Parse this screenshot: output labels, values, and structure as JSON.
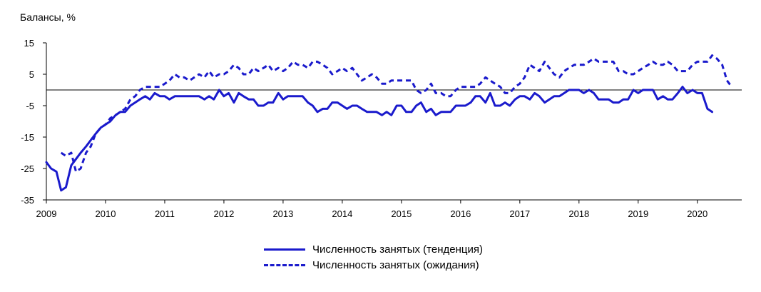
{
  "chart_data": {
    "type": "line",
    "ylabel": "Балансы, %",
    "ylim": [
      -35,
      15
    ],
    "yticks": [
      15,
      5,
      -5,
      -15,
      -25,
      -35
    ],
    "xlim": [
      2009,
      2020.75
    ],
    "xticks": [
      "2009",
      "2010",
      "2011",
      "2012",
      "2013",
      "2014",
      "2015",
      "2016",
      "2017",
      "2018",
      "2019",
      "2020"
    ],
    "zero_line": true,
    "grid": false,
    "legend_position": "bottom",
    "line_color": "#1a1acc",
    "series": [
      {
        "name": "Численность занятых (тенденция)",
        "style": "solid",
        "points": [
          [
            2009.0,
            -23
          ],
          [
            2009.08,
            -25
          ],
          [
            2009.17,
            -26
          ],
          [
            2009.25,
            -32
          ],
          [
            2009.33,
            -31
          ],
          [
            2009.42,
            -24
          ],
          [
            2009.5,
            -22
          ],
          [
            2009.58,
            -20
          ],
          [
            2009.67,
            -18
          ],
          [
            2009.75,
            -16
          ],
          [
            2009.83,
            -14
          ],
          [
            2009.92,
            -12
          ],
          [
            2010.0,
            -11
          ],
          [
            2010.08,
            -10
          ],
          [
            2010.17,
            -8
          ],
          [
            2010.25,
            -7
          ],
          [
            2010.33,
            -7
          ],
          [
            2010.42,
            -5
          ],
          [
            2010.5,
            -4
          ],
          [
            2010.58,
            -3
          ],
          [
            2010.67,
            -2
          ],
          [
            2010.75,
            -3
          ],
          [
            2010.83,
            -1
          ],
          [
            2010.92,
            -2
          ],
          [
            2011.0,
            -2
          ],
          [
            2011.08,
            -3
          ],
          [
            2011.17,
            -2
          ],
          [
            2011.25,
            -2
          ],
          [
            2011.33,
            -2
          ],
          [
            2011.42,
            -2
          ],
          [
            2011.5,
            -2
          ],
          [
            2011.58,
            -2
          ],
          [
            2011.67,
            -3
          ],
          [
            2011.75,
            -2
          ],
          [
            2011.83,
            -3
          ],
          [
            2011.92,
            0
          ],
          [
            2012.0,
            -2
          ],
          [
            2012.08,
            -1
          ],
          [
            2012.17,
            -4
          ],
          [
            2012.25,
            -1
          ],
          [
            2012.33,
            -2
          ],
          [
            2012.42,
            -3
          ],
          [
            2012.5,
            -3
          ],
          [
            2012.58,
            -5
          ],
          [
            2012.67,
            -5
          ],
          [
            2012.75,
            -4
          ],
          [
            2012.83,
            -4
          ],
          [
            2012.92,
            -1
          ],
          [
            2013.0,
            -3
          ],
          [
            2013.08,
            -2
          ],
          [
            2013.17,
            -2
          ],
          [
            2013.25,
            -2
          ],
          [
            2013.33,
            -2
          ],
          [
            2013.42,
            -4
          ],
          [
            2013.5,
            -5
          ],
          [
            2013.58,
            -7
          ],
          [
            2013.67,
            -6
          ],
          [
            2013.75,
            -6
          ],
          [
            2013.83,
            -4
          ],
          [
            2013.92,
            -4
          ],
          [
            2014.0,
            -5
          ],
          [
            2014.08,
            -6
          ],
          [
            2014.17,
            -5
          ],
          [
            2014.25,
            -5
          ],
          [
            2014.33,
            -6
          ],
          [
            2014.42,
            -7
          ],
          [
            2014.5,
            -7
          ],
          [
            2014.58,
            -7
          ],
          [
            2014.67,
            -8
          ],
          [
            2014.75,
            -7
          ],
          [
            2014.83,
            -8
          ],
          [
            2014.92,
            -5
          ],
          [
            2015.0,
            -5
          ],
          [
            2015.08,
            -7
          ],
          [
            2015.17,
            -7
          ],
          [
            2015.25,
            -5
          ],
          [
            2015.33,
            -4
          ],
          [
            2015.42,
            -7
          ],
          [
            2015.5,
            -6
          ],
          [
            2015.58,
            -8
          ],
          [
            2015.67,
            -7
          ],
          [
            2015.75,
            -7
          ],
          [
            2015.83,
            -7
          ],
          [
            2015.92,
            -5
          ],
          [
            2016.0,
            -5
          ],
          [
            2016.08,
            -5
          ],
          [
            2016.17,
            -4
          ],
          [
            2016.25,
            -2
          ],
          [
            2016.33,
            -2
          ],
          [
            2016.42,
            -4
          ],
          [
            2016.5,
            -1
          ],
          [
            2016.58,
            -5
          ],
          [
            2016.67,
            -5
          ],
          [
            2016.75,
            -4
          ],
          [
            2016.83,
            -5
          ],
          [
            2016.92,
            -3
          ],
          [
            2017.0,
            -2
          ],
          [
            2017.08,
            -2
          ],
          [
            2017.17,
            -3
          ],
          [
            2017.25,
            -1
          ],
          [
            2017.33,
            -2
          ],
          [
            2017.42,
            -4
          ],
          [
            2017.5,
            -3
          ],
          [
            2017.58,
            -2
          ],
          [
            2017.67,
            -2
          ],
          [
            2017.75,
            -1
          ],
          [
            2017.83,
            0
          ],
          [
            2017.92,
            0
          ],
          [
            2018.0,
            0
          ],
          [
            2018.08,
            -1
          ],
          [
            2018.17,
            0
          ],
          [
            2018.25,
            -1
          ],
          [
            2018.33,
            -3
          ],
          [
            2018.42,
            -3
          ],
          [
            2018.5,
            -3
          ],
          [
            2018.58,
            -4
          ],
          [
            2018.67,
            -4
          ],
          [
            2018.75,
            -3
          ],
          [
            2018.83,
            -3
          ],
          [
            2018.92,
            0
          ],
          [
            2019.0,
            -1
          ],
          [
            2019.08,
            0
          ],
          [
            2019.17,
            0
          ],
          [
            2019.25,
            0
          ],
          [
            2019.33,
            -3
          ],
          [
            2019.42,
            -2
          ],
          [
            2019.5,
            -3
          ],
          [
            2019.58,
            -3
          ],
          [
            2019.67,
            -1
          ],
          [
            2019.75,
            1
          ],
          [
            2019.83,
            -1
          ],
          [
            2019.92,
            0
          ],
          [
            2020.0,
            -1
          ],
          [
            2020.08,
            -1
          ],
          [
            2020.17,
            -6
          ],
          [
            2020.25,
            -7
          ]
        ]
      },
      {
        "name": "Численность занятых (ожидания)",
        "style": "dashed",
        "points": [
          [
            2009.25,
            -20
          ],
          [
            2009.33,
            -21
          ],
          [
            2009.42,
            -20
          ],
          [
            2009.5,
            -26
          ],
          [
            2009.58,
            -25
          ],
          [
            2009.67,
            -20
          ],
          [
            2009.75,
            -18
          ],
          [
            2009.83,
            -14
          ],
          [
            2009.92,
            -12
          ],
          [
            2010.0,
            -11
          ],
          [
            2010.08,
            -9
          ],
          [
            2010.17,
            -8
          ],
          [
            2010.25,
            -7
          ],
          [
            2010.33,
            -6
          ],
          [
            2010.42,
            -3
          ],
          [
            2010.5,
            -2
          ],
          [
            2010.58,
            0
          ],
          [
            2010.67,
            1
          ],
          [
            2010.75,
            1
          ],
          [
            2010.83,
            1
          ],
          [
            2010.92,
            1
          ],
          [
            2011.0,
            2
          ],
          [
            2011.08,
            3
          ],
          [
            2011.17,
            5
          ],
          [
            2011.25,
            4
          ],
          [
            2011.33,
            4
          ],
          [
            2011.42,
            3
          ],
          [
            2011.5,
            4
          ],
          [
            2011.58,
            5
          ],
          [
            2011.67,
            4
          ],
          [
            2011.75,
            6
          ],
          [
            2011.83,
            4
          ],
          [
            2011.92,
            5
          ],
          [
            2012.0,
            5
          ],
          [
            2012.08,
            6
          ],
          [
            2012.17,
            8
          ],
          [
            2012.25,
            7
          ],
          [
            2012.33,
            5
          ],
          [
            2012.42,
            5
          ],
          [
            2012.5,
            7
          ],
          [
            2012.58,
            6
          ],
          [
            2012.67,
            7
          ],
          [
            2012.75,
            8
          ],
          [
            2012.83,
            6
          ],
          [
            2012.92,
            7
          ],
          [
            2013.0,
            6
          ],
          [
            2013.08,
            7
          ],
          [
            2013.17,
            9
          ],
          [
            2013.25,
            8
          ],
          [
            2013.33,
            8
          ],
          [
            2013.42,
            7
          ],
          [
            2013.5,
            9
          ],
          [
            2013.58,
            9
          ],
          [
            2013.67,
            8
          ],
          [
            2013.75,
            7
          ],
          [
            2013.83,
            5
          ],
          [
            2013.92,
            6
          ],
          [
            2014.0,
            7
          ],
          [
            2014.08,
            6
          ],
          [
            2014.17,
            7
          ],
          [
            2014.25,
            5
          ],
          [
            2014.33,
            3
          ],
          [
            2014.42,
            4
          ],
          [
            2014.5,
            5
          ],
          [
            2014.58,
            4
          ],
          [
            2014.67,
            2
          ],
          [
            2014.75,
            2
          ],
          [
            2014.83,
            3
          ],
          [
            2014.92,
            3
          ],
          [
            2015.0,
            3
          ],
          [
            2015.08,
            3
          ],
          [
            2015.17,
            3
          ],
          [
            2015.25,
            0
          ],
          [
            2015.33,
            -1
          ],
          [
            2015.42,
            0
          ],
          [
            2015.5,
            2
          ],
          [
            2015.58,
            -1
          ],
          [
            2015.67,
            -1
          ],
          [
            2015.75,
            -2
          ],
          [
            2015.83,
            -2
          ],
          [
            2015.92,
            0
          ],
          [
            2016.0,
            1
          ],
          [
            2016.08,
            1
          ],
          [
            2016.17,
            1
          ],
          [
            2016.25,
            1
          ],
          [
            2016.33,
            2
          ],
          [
            2016.42,
            4
          ],
          [
            2016.5,
            3
          ],
          [
            2016.58,
            2
          ],
          [
            2016.67,
            1
          ],
          [
            2016.75,
            -1
          ],
          [
            2016.83,
            -1
          ],
          [
            2016.92,
            1
          ],
          [
            2017.0,
            2
          ],
          [
            2017.08,
            4
          ],
          [
            2017.17,
            8
          ],
          [
            2017.25,
            7
          ],
          [
            2017.33,
            6
          ],
          [
            2017.42,
            9
          ],
          [
            2017.5,
            7
          ],
          [
            2017.58,
            5
          ],
          [
            2017.67,
            4
          ],
          [
            2017.75,
            6
          ],
          [
            2017.83,
            7
          ],
          [
            2017.92,
            8
          ],
          [
            2018.0,
            8
          ],
          [
            2018.08,
            8
          ],
          [
            2018.17,
            9
          ],
          [
            2018.25,
            10
          ],
          [
            2018.33,
            9
          ],
          [
            2018.42,
            9
          ],
          [
            2018.5,
            9
          ],
          [
            2018.58,
            9
          ],
          [
            2018.67,
            6
          ],
          [
            2018.75,
            6
          ],
          [
            2018.83,
            5
          ],
          [
            2018.92,
            5
          ],
          [
            2019.0,
            6
          ],
          [
            2019.08,
            7
          ],
          [
            2019.17,
            8
          ],
          [
            2019.25,
            9
          ],
          [
            2019.33,
            8
          ],
          [
            2019.42,
            8
          ],
          [
            2019.5,
            9
          ],
          [
            2019.58,
            8
          ],
          [
            2019.67,
            6
          ],
          [
            2019.75,
            6
          ],
          [
            2019.83,
            6
          ],
          [
            2019.92,
            8
          ],
          [
            2020.0,
            9
          ],
          [
            2020.08,
            9
          ],
          [
            2020.17,
            9
          ],
          [
            2020.25,
            11
          ],
          [
            2020.33,
            10
          ],
          [
            2020.42,
            8
          ],
          [
            2020.5,
            3
          ],
          [
            2020.58,
            1
          ]
        ]
      }
    ]
  }
}
